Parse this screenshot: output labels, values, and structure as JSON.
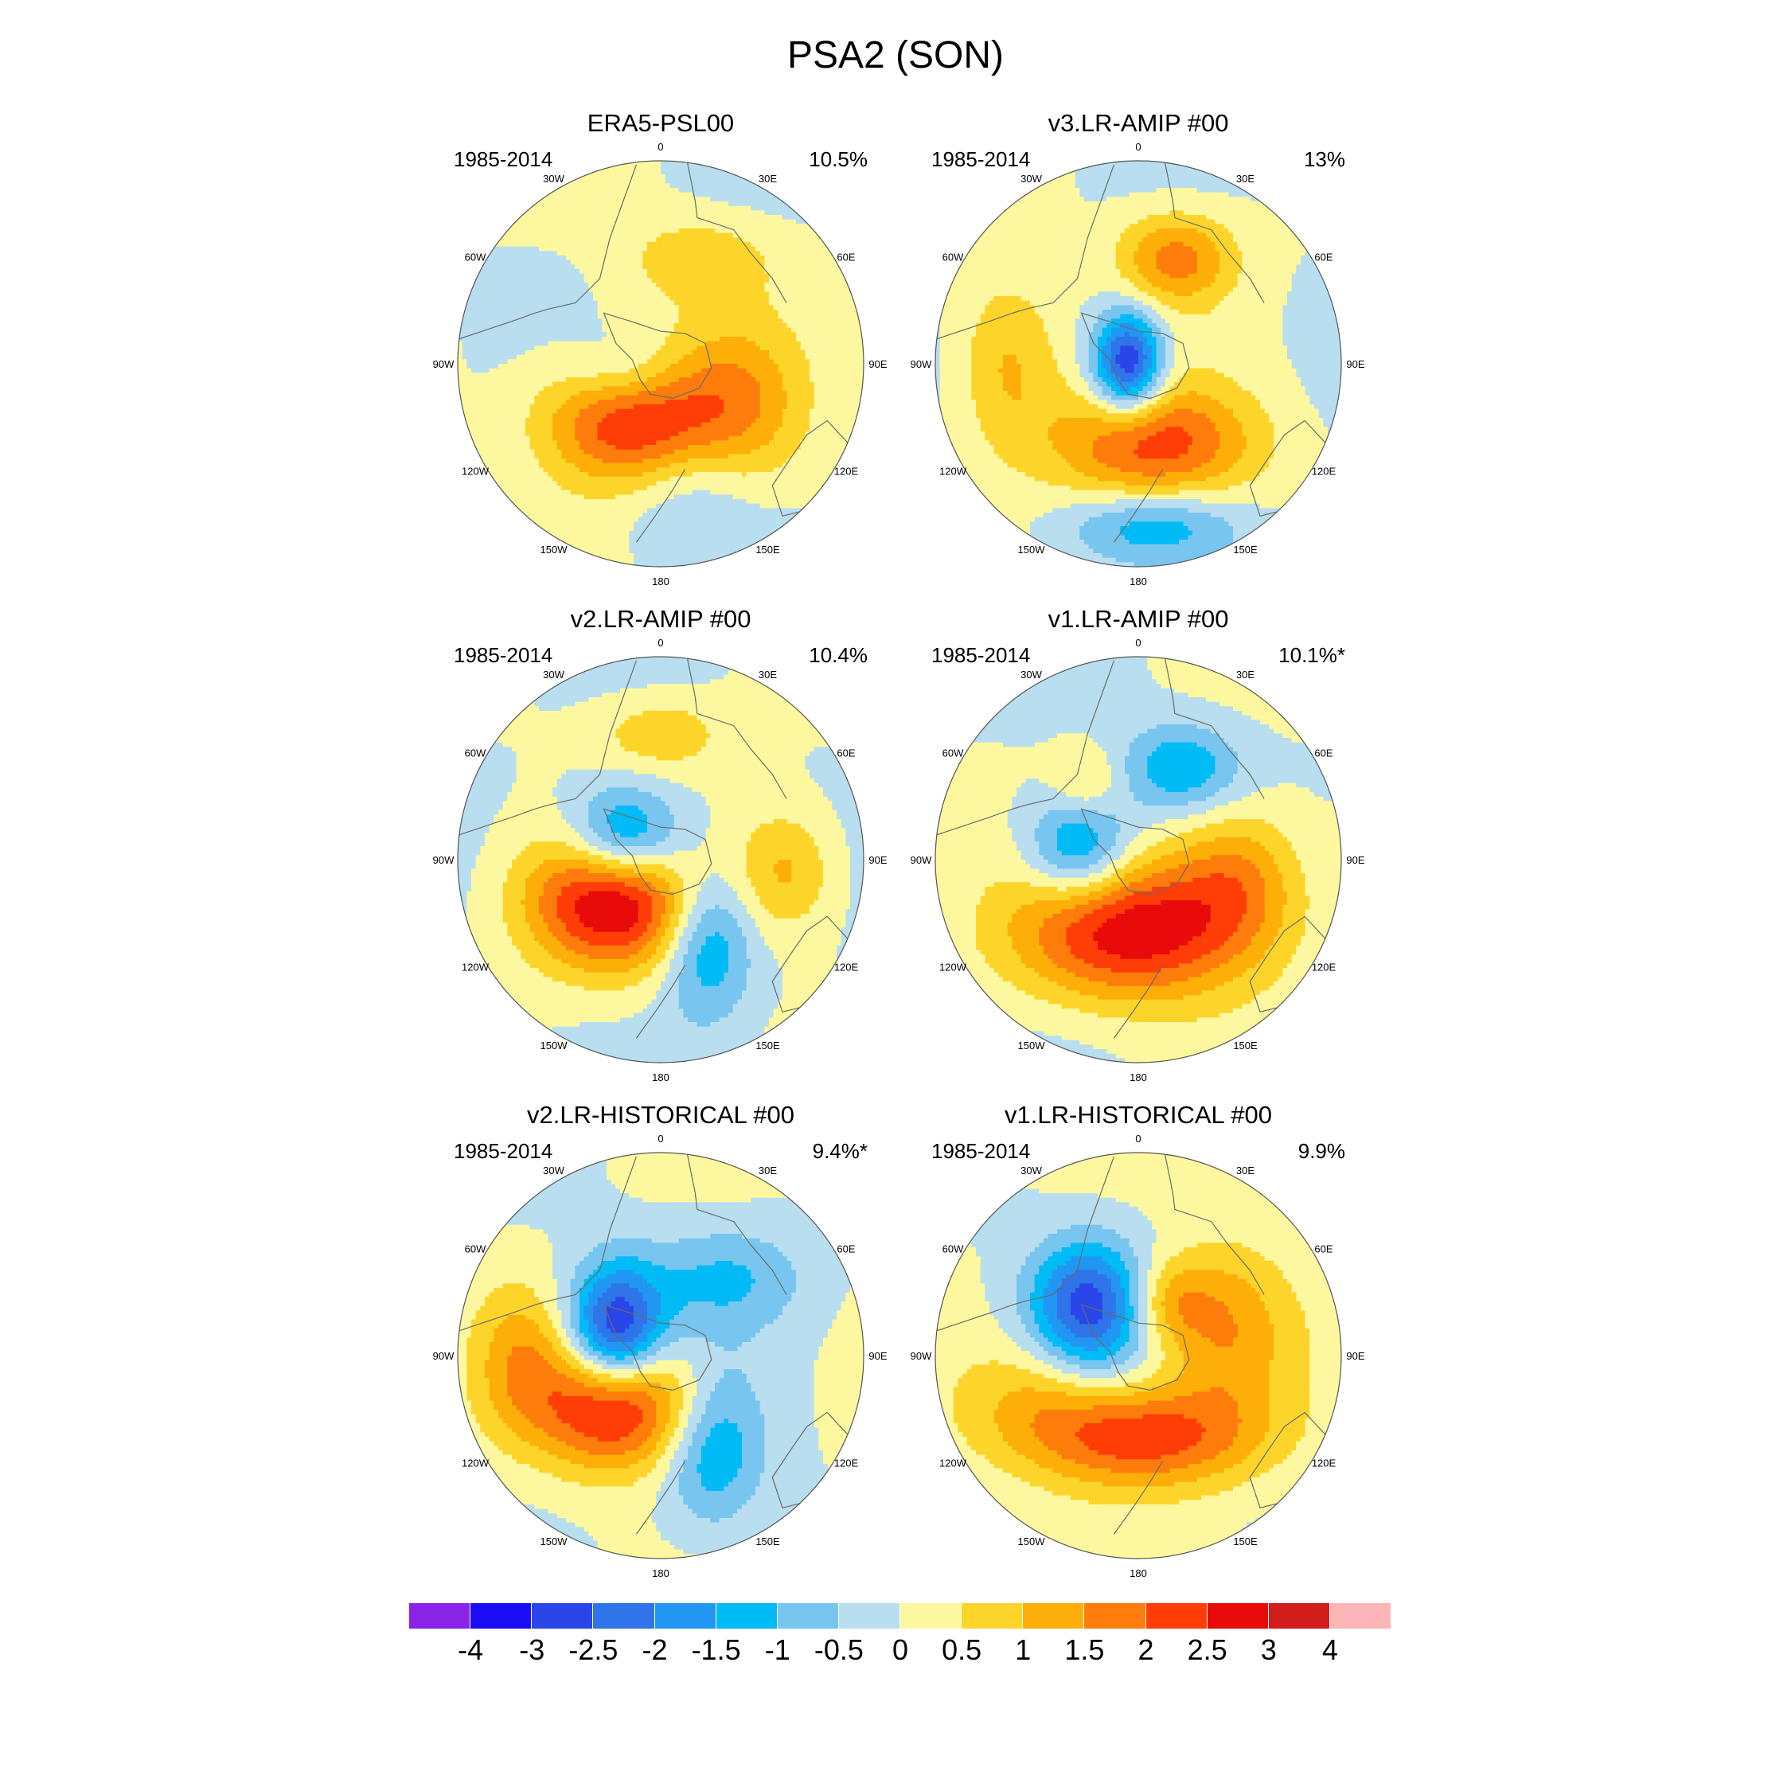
{
  "title": "PSA2 (SON)",
  "colors": {
    "coast": "#6a6a6a",
    "outline": "#555555",
    "levels": [
      "#8b22e8",
      "#1a0cf5",
      "#2a45e8",
      "#2f74e8",
      "#2196f3",
      "#00bbf5",
      "#78c6ef",
      "#b8def0",
      "#fdf89f",
      "#fdd52a",
      "#fdae09",
      "#fd7c0b",
      "#fe3d07",
      "#e80b0a",
      "#d21d1d",
      "#fdb6b8"
    ]
  },
  "lon_labels": [
    "0",
    "30E",
    "60E",
    "90E",
    "120E",
    "150E",
    "180",
    "150W",
    "120W",
    "90W",
    "60W",
    "30W"
  ],
  "colorbar": {
    "labels": [
      "-4",
      "-3",
      "-2.5",
      "-2",
      "-1.5",
      "-1",
      "-0.5",
      "0",
      "0.5",
      "1",
      "1.5",
      "2",
      "2.5",
      "3",
      "4"
    ]
  },
  "panels": [
    {
      "title": "ERA5-PSL00",
      "years": "1985-2014",
      "variance": "10.5%",
      "blobs": [
        {
          "lon": 210,
          "r": 0.28,
          "value": 3.2,
          "sx": 0.3,
          "sy": 0.24
        },
        {
          "lon": 250,
          "r": 0.18,
          "value": -1.6,
          "sx": 0.22,
          "sy": 0.16
        },
        {
          "lon": 120,
          "r": 0.45,
          "value": 1.2,
          "sx": 0.22,
          "sy": 0.3
        },
        {
          "lon": 20,
          "r": 0.55,
          "value": 0.9,
          "sx": 0.25,
          "sy": 0.14
        },
        {
          "lon": 165,
          "r": 0.6,
          "value": -0.8,
          "sx": 0.25,
          "sy": 0.25
        }
      ]
    },
    {
      "title": "v3.LR-AMIP  #00",
      "years": "1985-2014",
      "variance": "13%",
      "blobs": [
        {
          "lon": 270,
          "r": 0.05,
          "value": -3.2,
          "sx": 0.12,
          "sy": 0.18
        },
        {
          "lon": 170,
          "r": 0.4,
          "value": 2.2,
          "sx": 0.35,
          "sy": 0.2
        },
        {
          "lon": 20,
          "r": 0.55,
          "value": 1.7,
          "sx": 0.2,
          "sy": 0.16
        },
        {
          "lon": 270,
          "r": 0.65,
          "value": 1.2,
          "sx": 0.18,
          "sy": 0.3
        },
        {
          "lon": 175,
          "r": 0.8,
          "value": -1.3,
          "sx": 0.3,
          "sy": 0.12
        }
      ]
    },
    {
      "title": "v2.LR-AMIP  #00",
      "years": "1985-2014",
      "variance": "10.4%",
      "blobs": [
        {
          "lon": 230,
          "r": 0.3,
          "value": 3.2,
          "sx": 0.3,
          "sy": 0.24
        },
        {
          "lon": 300,
          "r": 0.2,
          "value": -2.6,
          "sx": 0.2,
          "sy": 0.18
        },
        {
          "lon": 150,
          "r": 0.45,
          "value": -1.8,
          "sx": 0.16,
          "sy": 0.26
        },
        {
          "lon": 95,
          "r": 0.62,
          "value": 1.2,
          "sx": 0.18,
          "sy": 0.22
        },
        {
          "lon": 0,
          "r": 0.62,
          "value": 0.9,
          "sx": 0.22,
          "sy": 0.13
        }
      ]
    },
    {
      "title": "v1.LR-AMIP  #00",
      "years": "1985-2014",
      "variance": "10.1%*",
      "blobs": [
        {
          "lon": 185,
          "r": 0.35,
          "value": 2.9,
          "sx": 0.4,
          "sy": 0.24
        },
        {
          "lon": 280,
          "r": 0.3,
          "value": -2.0,
          "sx": 0.18,
          "sy": 0.2
        },
        {
          "lon": 25,
          "r": 0.5,
          "value": -1.5,
          "sx": 0.2,
          "sy": 0.15
        },
        {
          "lon": 100,
          "r": 0.5,
          "value": 1.5,
          "sx": 0.22,
          "sy": 0.25
        },
        {
          "lon": 325,
          "r": 0.45,
          "value": 0.9,
          "sx": 0.12,
          "sy": 0.12
        }
      ]
    },
    {
      "title": "v2.LR-HISTORICAL  #00",
      "years": "1985-2014",
      "variance": "9.4%*",
      "blobs": [
        {
          "lon": 220,
          "r": 0.32,
          "value": 3.0,
          "sx": 0.3,
          "sy": 0.22
        },
        {
          "lon": 300,
          "r": 0.25,
          "value": -3.2,
          "sx": 0.16,
          "sy": 0.22
        },
        {
          "lon": 150,
          "r": 0.5,
          "value": -1.7,
          "sx": 0.18,
          "sy": 0.28
        },
        {
          "lon": 40,
          "r": 0.5,
          "value": -1.0,
          "sx": 0.28,
          "sy": 0.18
        },
        {
          "lon": 270,
          "r": 0.7,
          "value": 1.0,
          "sx": 0.15,
          "sy": 0.25
        }
      ]
    },
    {
      "title": "v1.LR-HISTORICAL  #00",
      "years": "1985-2014",
      "variance": "9.9%",
      "blobs": [
        {
          "lon": 315,
          "r": 0.35,
          "value": -2.7,
          "sx": 0.2,
          "sy": 0.22
        },
        {
          "lon": 180,
          "r": 0.4,
          "value": 2.4,
          "sx": 0.4,
          "sy": 0.18
        },
        {
          "lon": 75,
          "r": 0.45,
          "value": 1.4,
          "sx": 0.22,
          "sy": 0.3
        },
        {
          "lon": 30,
          "r": 0.3,
          "value": 1.2,
          "sx": 0.15,
          "sy": 0.15
        },
        {
          "lon": 250,
          "r": 0.55,
          "value": 0.8,
          "sx": 0.25,
          "sy": 0.2
        }
      ]
    }
  ]
}
